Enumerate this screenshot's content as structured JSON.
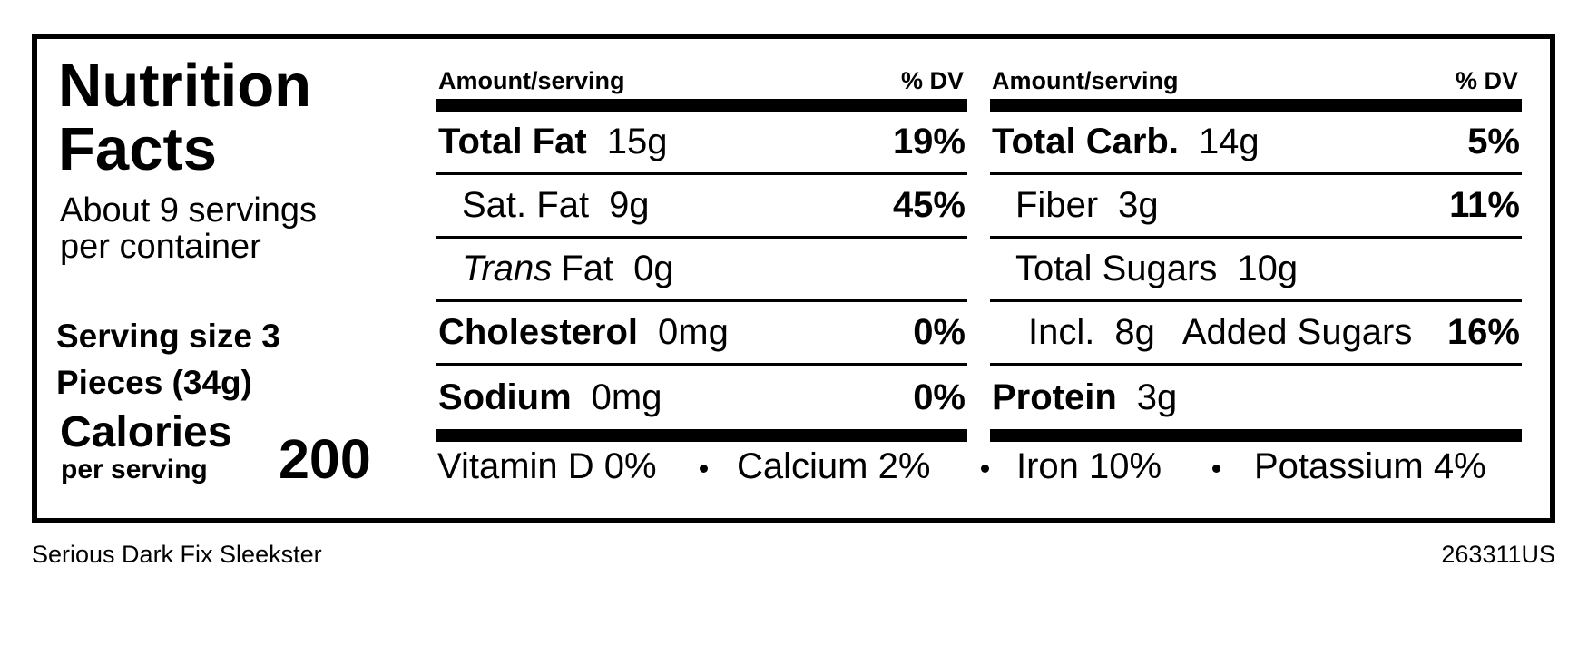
{
  "title": "Nutrition Facts",
  "servings": "About 9 servings per container",
  "serving_size": "Serving size 3 Pieces (34g)",
  "calories": {
    "label": "Calories",
    "sublabel": "per serving",
    "value": "200"
  },
  "columns": [
    {
      "header": {
        "amount": "Amount/serving",
        "dv": "% DV"
      },
      "rows": [
        {
          "name": "Total Fat",
          "amount": "15g",
          "dv": "19%",
          "bold": true,
          "indent": false
        },
        {
          "name": "Sat. Fat",
          "amount": "9g",
          "dv": "45%",
          "bold": false,
          "indent": true
        },
        {
          "name_italic": "Trans",
          "name": "Fat",
          "amount": "0g",
          "bold": false,
          "indent": true
        },
        {
          "name": "Cholesterol",
          "amount": "0mg",
          "dv": "0%",
          "bold": true,
          "indent": false
        },
        {
          "name": "Sodium",
          "amount": "0mg",
          "dv": "0%",
          "bold": true,
          "indent": false
        }
      ]
    },
    {
      "header": {
        "amount": "Amount/serving",
        "dv": "% DV"
      },
      "rows": [
        {
          "name": "Total Carb.",
          "amount": "14g",
          "dv": "5%",
          "bold": true,
          "indent": false
        },
        {
          "name": "Fiber",
          "amount": "3g",
          "dv": "11%",
          "bold": false,
          "indent": true
        },
        {
          "name": "Total Sugars",
          "amount": "10g",
          "bold": false,
          "indent": true
        },
        {
          "prefix": "Incl.",
          "amount": "8g",
          "name": "Added Sugars",
          "dv": "16%",
          "bold": false,
          "indent": true,
          "subindent": true
        },
        {
          "name": "Protein",
          "amount": "3g",
          "bold": true,
          "indent": false
        }
      ]
    }
  ],
  "vitamins": [
    "Vitamin D 0%",
    "Calcium 2%",
    "Iron 10%",
    "Potassium 4%"
  ],
  "footer": {
    "product": "Serious Dark Fix Sleekster",
    "code": "263311US"
  }
}
